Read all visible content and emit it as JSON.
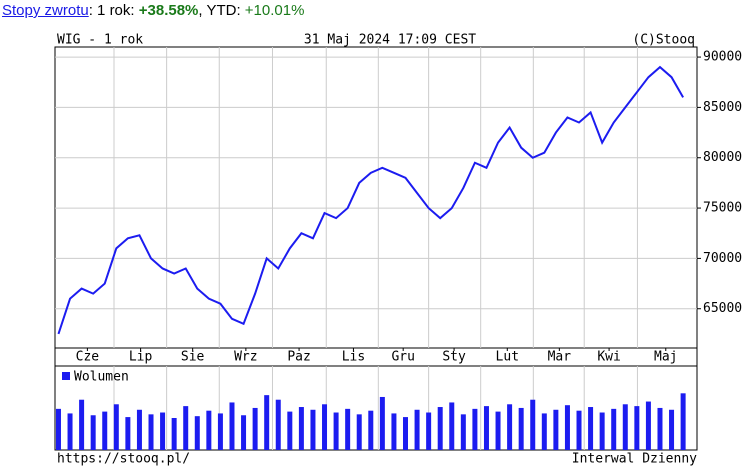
{
  "header": {
    "link": "Stopy zwrotu",
    "period_label": ": 1 rok: ",
    "period_return": "+38.58%",
    "ytd_label": ", YTD: ",
    "ytd_return": "+10.01%"
  },
  "chart_data": {
    "type": "line",
    "title": "WIG - 1 rok",
    "subtitle": "31 Maj 2024 17:09 CEST",
    "credit": "(C)Stooq",
    "x": [
      0,
      1,
      2,
      3,
      4,
      5,
      6,
      7,
      8,
      9,
      10,
      11,
      12,
      13,
      14,
      15,
      16,
      17,
      18,
      19,
      20,
      21,
      22,
      23,
      24,
      25,
      26,
      27,
      28,
      29,
      30,
      31,
      32,
      33,
      34,
      35,
      36,
      37,
      38,
      39,
      40,
      41,
      42,
      43,
      44,
      45,
      46,
      47,
      48,
      49,
      50,
      51,
      52,
      53,
      54
    ],
    "series": [
      {
        "name": "WIG",
        "color": "#1c1cf0",
        "values": [
          62500,
          66000,
          67000,
          66500,
          67500,
          71000,
          72000,
          72300,
          70000,
          69000,
          68500,
          69000,
          67000,
          66000,
          65500,
          64000,
          63500,
          66500,
          70000,
          69000,
          71000,
          72500,
          72000,
          74500,
          74000,
          75000,
          77500,
          78500,
          79000,
          78500,
          78000,
          76500,
          75000,
          74000,
          75000,
          77000,
          79500,
          79000,
          81500,
          83000,
          81000,
          80000,
          80500,
          82500,
          84000,
          83500,
          84500,
          81500,
          83500,
          85000,
          86500,
          88000,
          89000,
          88000,
          86000
        ]
      }
    ],
    "volume": {
      "name": "Wolumen",
      "color": "#1c1cf0",
      "values": [
        45,
        40,
        55,
        38,
        42,
        50,
        36,
        44,
        39,
        41,
        35,
        48,
        37,
        43,
        40,
        52,
        38,
        46,
        60,
        55,
        42,
        47,
        44,
        50,
        41,
        45,
        39,
        43,
        58,
        40,
        36,
        44,
        41,
        47,
        52,
        39,
        45,
        48,
        42,
        50,
        46,
        55,
        40,
        44,
        49,
        43,
        47,
        41,
        45,
        50,
        48,
        53,
        46,
        44,
        62
      ]
    },
    "xlim": [
      -0.3,
      55.2
    ],
    "ylim": [
      61100,
      91000
    ],
    "y2lim": [
      0,
      70
    ],
    "xticks": [
      {
        "value": 2.5,
        "label": "Cze"
      },
      {
        "value": 7.1,
        "label": "Lip"
      },
      {
        "value": 11.6,
        "label": "Sie"
      },
      {
        "value": 16.2,
        "label": "Wrz"
      },
      {
        "value": 20.8,
        "label": "Paz"
      },
      {
        "value": 25.5,
        "label": "Lis"
      },
      {
        "value": 29.8,
        "label": "Gru"
      },
      {
        "value": 34.2,
        "label": "Sty"
      },
      {
        "value": 38.8,
        "label": "Lut"
      },
      {
        "value": 43.3,
        "label": "Mar"
      },
      {
        "value": 47.6,
        "label": "Kwi"
      },
      {
        "value": 52.5,
        "label": "Maj"
      }
    ],
    "yticks": [
      65000,
      70000,
      75000,
      80000,
      85000,
      90000
    ],
    "grid": true,
    "footer_left": "https://stooq.pl/",
    "footer_right": "Interwal Dzienny"
  }
}
